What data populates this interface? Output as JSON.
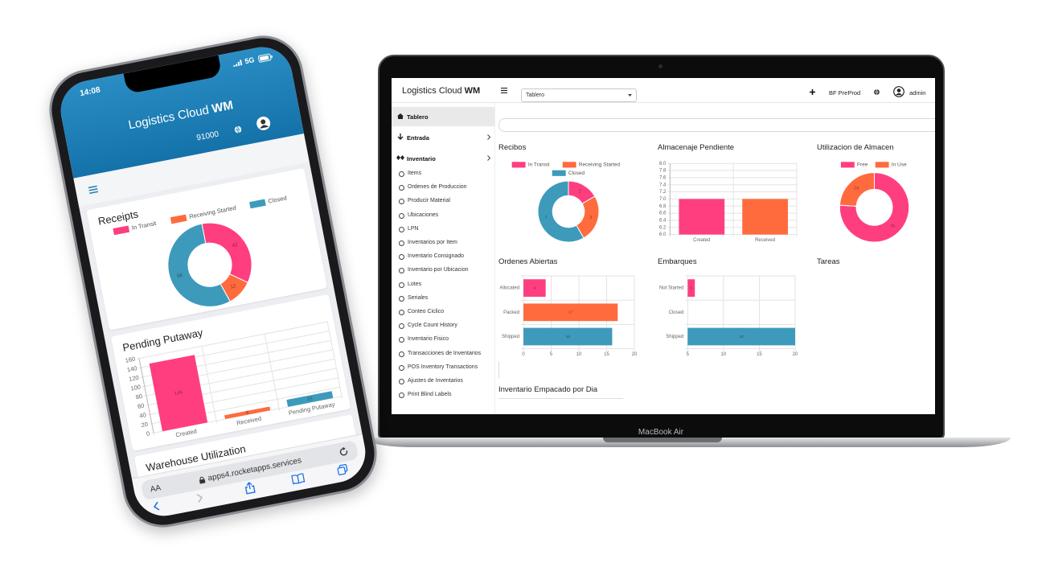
{
  "phone": {
    "time": "14:08",
    "network": "5G",
    "app_name": "Logistics Cloud",
    "app_name_bold": "WM",
    "org": "91000",
    "panel_title": "Warehouse Utilization",
    "reader_button": "AA",
    "url": "apps4.rocketapps.services"
  },
  "laptop": {
    "app_name": "Logistics Cloud",
    "app_name_bold": "WM",
    "page_select": "Tablero",
    "environment": "BF PreProd",
    "user": "admin",
    "menu": [
      "Tablero",
      "Entrada",
      "Inventario"
    ],
    "submenu": [
      "Items",
      "Ordenes de Produccion",
      "Producir Material",
      "Ubicaciones",
      "LPN",
      "Inventarios por Item",
      "Inventario Consignado",
      "Inventario por Ubicacion",
      "Lotes",
      "Seriales",
      "Conteo Ciclico",
      "Cycle Count History",
      "Inventario Fisico",
      "Transacciones de Inventarios",
      "POS Inventory Transactions",
      "Ajustes de Inventarios",
      "Print Blind Labels"
    ],
    "panels": [
      "Tareas",
      "Inventario Empacado por Dia"
    ],
    "model": "MacBook Air"
  },
  "chart_data": [
    {
      "type": "doughnut",
      "title": "Receipts",
      "categories": [
        "In Transit",
        "Receiving Started",
        "Closed"
      ],
      "values": [
        42,
        12,
        66
      ],
      "colors": [
        "#ff3e7f",
        "#ff6b3d",
        "#3d9abb"
      ],
      "data_labels": true
    },
    {
      "type": "bar",
      "title": "Pending Putaway",
      "categories": [
        "Created",
        "Received",
        "Pending Putaway"
      ],
      "values": [
        145,
        8,
        15
      ],
      "colors": [
        "#ff3e7f",
        "#ff6b3d",
        "#3d9abb"
      ],
      "ylim": [
        0,
        160
      ],
      "yticks": [
        0,
        20,
        40,
        60,
        80,
        100,
        120,
        140,
        160
      ],
      "grid": true,
      "data_labels": true
    },
    {
      "type": "doughnut",
      "title": "Recibos",
      "categories": [
        "In Transit",
        "Receiving Started",
        "Closed"
      ],
      "values": [
        2,
        3,
        7
      ],
      "colors": [
        "#ff3e7f",
        "#ff6b3d",
        "#3d9abb"
      ],
      "data_labels": true
    },
    {
      "type": "bar",
      "title": "Almacenaje Pendiente",
      "categories": [
        "Created",
        "Received"
      ],
      "values": [
        7,
        7
      ],
      "colors": [
        "#ff3e7f",
        "#ff6b3d"
      ],
      "ylim": [
        6,
        8
      ],
      "yticks": [
        {
          "value": 6,
          "label": "6.0"
        },
        6.2,
        6.4,
        6.6,
        6.8,
        {
          "value": 7,
          "label": "7.0"
        },
        7.2,
        7.4,
        7.6,
        7.8,
        {
          "value": 8,
          "label": "8.0"
        }
      ],
      "grid": true,
      "data_labels": false
    },
    {
      "type": "doughnut",
      "title": "Utilizacion de Almacen",
      "categories": [
        "Free",
        "In Use"
      ],
      "values": [
        76,
        24
      ],
      "colors": [
        "#ff3e7f",
        "#ff6b3d"
      ],
      "data_labels": true
    },
    {
      "type": "barh",
      "title": "Ordenes Abiertas",
      "categories": [
        "Allocated",
        "Packed",
        "Shipped"
      ],
      "values": [
        4,
        17,
        16
      ],
      "colors": [
        "#ff3e7f",
        "#ff6b3d",
        "#3d9abb"
      ],
      "xlim": [
        0,
        20
      ],
      "xticks": [
        0,
        5,
        10,
        15,
        20
      ],
      "grid": true,
      "data_labels": true
    },
    {
      "type": "barh",
      "title": "Embarques",
      "categories": [
        "Not Started",
        "Closed",
        "Shipped"
      ],
      "values": [
        6,
        null,
        20
      ],
      "colors": [
        "#ff3e7f",
        "#ff6b3d",
        "#3d9abb"
      ],
      "xlim": [
        5,
        20
      ],
      "xticks": [
        5,
        10,
        15,
        20
      ],
      "grid": true,
      "data_labels": true
    }
  ]
}
